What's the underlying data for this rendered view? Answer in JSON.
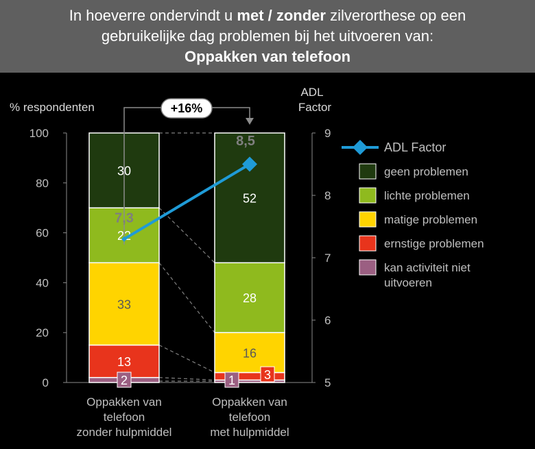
{
  "title": {
    "part1": "In hoeverre ondervindt u ",
    "bold": "met / zonder",
    "part2": " zilverorthese op een",
    "line2": "gebruikelijke dag problemen bij het uitvoeren van:",
    "line3": "Oppakken van telefoon"
  },
  "chart_data": {
    "type": "bar",
    "stacked": true,
    "ylabel": "% respondenten",
    "y2label_line1": "ADL",
    "y2label_line2": "Factor",
    "ylim": [
      0,
      100
    ],
    "y_ticks": [
      "0",
      "20",
      "40",
      "60",
      "80",
      "100"
    ],
    "y2lim": [
      5,
      9
    ],
    "y2_ticks": [
      "5",
      "6",
      "7",
      "8",
      "9"
    ],
    "categories": [
      [
        "Oppakken van",
        "telefoon",
        "zonder hulpmiddel"
      ],
      [
        "Oppakken van",
        "telefoon",
        "met hulpmiddel"
      ]
    ],
    "series": [
      {
        "name": "kan activiteit niet uitvoeren",
        "color": "#9b5f82",
        "values": [
          2,
          1
        ],
        "labels": [
          "2",
          "1"
        ]
      },
      {
        "name": "ernstige problemen",
        "color": "#e8341c",
        "values": [
          13,
          3
        ],
        "labels": [
          "13",
          "3"
        ]
      },
      {
        "name": "matige problemen",
        "color": "#ffd400",
        "values": [
          33,
          16
        ],
        "labels": [
          "33",
          "16"
        ]
      },
      {
        "name": "lichte problemen",
        "color": "#8fba1e",
        "values": [
          22,
          28
        ],
        "labels": [
          "22",
          "28"
        ]
      },
      {
        "name": "geen problemen",
        "color": "#1f3a0f",
        "values": [
          30,
          52
        ],
        "labels": [
          "30",
          "52"
        ]
      }
    ],
    "line_series": {
      "name": "ADL Factor",
      "color": "#1f9bd7",
      "values": [
        7.3,
        8.5
      ],
      "labels": [
        "7,3",
        "8,5"
      ]
    },
    "change_label": "+16%",
    "legend": [
      {
        "name": "ADL Factor",
        "kind": "line",
        "color": "#1f9bd7"
      },
      {
        "name": "geen problemen",
        "kind": "box",
        "color": "#1f3a0f"
      },
      {
        "name": "lichte problemen",
        "kind": "box",
        "color": "#8fba1e"
      },
      {
        "name": "matige problemen",
        "kind": "box",
        "color": "#ffd400"
      },
      {
        "name": "ernstige problemen",
        "kind": "box",
        "color": "#e8341c"
      },
      {
        "name": "kan activiteit niet uitvoeren",
        "kind": "box",
        "color": "#9b5f82",
        "lines": [
          "kan activiteit niet",
          "uitvoeren"
        ]
      }
    ]
  }
}
